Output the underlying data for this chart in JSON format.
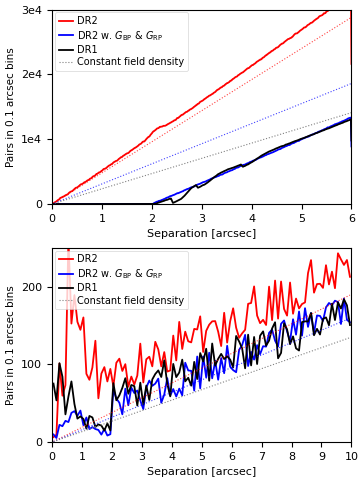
{
  "top_plot": {
    "xlim": [
      0,
      6
    ],
    "ylim": [
      0,
      30000
    ],
    "yticks": [
      0,
      10000,
      20000,
      30000
    ],
    "ytick_labels": [
      "0",
      "1e4",
      "2e4",
      "3e4"
    ],
    "xlabel": "Separation [arcsec]",
    "ylabel": "Pairs in 0.1 arcsec bins",
    "dr2_slope": 5000,
    "dr2_curve": 0.15,
    "dr2gbp_start": 2.0,
    "dr2gbp_slope": 3150,
    "dr1_start": 2.05,
    "dr1_slope": 2600,
    "const_red_slope": 4800,
    "const_blue_slope": 3100,
    "const_black_slope": 2350
  },
  "bottom_plot": {
    "xlim": [
      0,
      10
    ],
    "ylim": [
      0,
      250
    ],
    "yticks": [
      0,
      100,
      200
    ],
    "xlabel": "Separation [arcsec]",
    "ylabel": "Pairs in 0.1 arcsec bins",
    "const_red_slope": 19.0,
    "const_blue_slope": 16.0,
    "const_black_slope": 13.5
  },
  "legend_labels": [
    "DR2",
    "DR2 w. $G_{\\rm BP}$ & $G_{\\rm RP}$",
    "DR1",
    "Constant field density"
  ],
  "line_colors": [
    "red",
    "blue",
    "black"
  ],
  "const_color_red": "#ff6666",
  "const_color_blue": "#6666ff",
  "const_color_black": "gray"
}
